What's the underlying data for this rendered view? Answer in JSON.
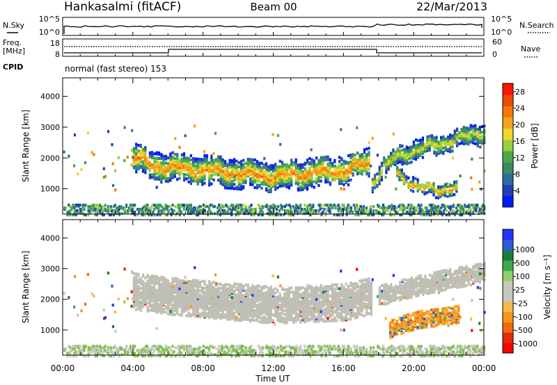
{
  "header": {
    "station": "Hankasalmi (fitACF)",
    "beam": "Beam 00",
    "date": "22/Mar/2013"
  },
  "top_panels": {
    "nsky": {
      "left_label": "N.Sky",
      "left_ticks": [
        "10^5",
        "10^0"
      ],
      "right_label": "N.Search",
      "right_ticks": [
        "10^5",
        "10^0"
      ]
    },
    "freq": {
      "left_label_1": "Freq.",
      "left_label_2": "[MHz]",
      "left_ticks": [
        "18",
        "8"
      ],
      "right_label": "Nave",
      "right_ticks": [
        "60",
        "0"
      ]
    },
    "cpid": {
      "label": "CPID",
      "program": "normal (fast stereo) 153"
    }
  },
  "colors": {
    "power_scale": [
      "#0018ff",
      "#1f3fb8",
      "#2e6c9a",
      "#3c8a5e",
      "#4aa84a",
      "#98d040",
      "#f2d42e",
      "#f5a21c",
      "#f47a0c",
      "#ee4a08",
      "#ff1400"
    ],
    "velocity_scale": [
      "#2233ff",
      "#2f5ad6",
      "#1e7a3c",
      "#3fa84a",
      "#8fcf6a",
      "#c7c7bf",
      "#c7c7bf",
      "#f6b84a",
      "#f5961a",
      "#f06a10",
      "#e02a08",
      "#ff0000"
    ],
    "ground_scatter": "#bebeb4"
  },
  "chart_data": [
    {
      "type": "heatmap",
      "panel": "power",
      "ylabel": "Slant Range [km]",
      "y_ticks": [
        1000,
        2000,
        3000,
        4000
      ],
      "ylim": [
        180,
        4600
      ],
      "x_ticks": [
        "00:00",
        "04:00",
        "08:00",
        "12:00",
        "16:00",
        "20:00",
        "00:00"
      ],
      "xlim_hours": [
        0,
        24
      ],
      "colorbar": {
        "label": "Power [dB]",
        "ticks": [
          4,
          8,
          12,
          16,
          20,
          24,
          28
        ],
        "range": [
          0,
          30
        ]
      },
      "scatter_bands": [
        {
          "t": [
            4.0,
            5.0,
            6.0,
            8.0,
            10.0,
            12.0,
            14.0,
            16.0,
            17.5
          ],
          "range_center": [
            2100,
            1800,
            1750,
            1650,
            1550,
            1450,
            1550,
            1650,
            1900
          ],
          "half_width": 320,
          "peak_power": 24
        },
        {
          "t": [
            17.6,
            18.2,
            19.0,
            20.0,
            21.0,
            22.0,
            23.0,
            24.0
          ],
          "range_center": [
            1300,
            1700,
            2100,
            2300,
            2450,
            2600,
            2750,
            2900
          ],
          "half_width": 220,
          "peak_power": 18
        },
        {
          "t": [
            19.0,
            19.8,
            20.5,
            21.5,
            22.5
          ],
          "range_center": [
            1500,
            1250,
            1050,
            1000,
            1150
          ],
          "half_width": 160,
          "peak_power": 22
        }
      ]
    },
    {
      "type": "heatmap",
      "panel": "velocity",
      "ylabel": "Slant Range [km]",
      "y_ticks": [
        1000,
        2000,
        3000,
        4000
      ],
      "ylim": [
        180,
        4600
      ],
      "x_ticks": [
        "00:00",
        "04:00",
        "08:00",
        "12:00",
        "16:00",
        "20:00",
        "00:00"
      ],
      "xlim_hours": [
        0,
        24
      ],
      "xlabel": "Time UT",
      "colorbar": {
        "label": "Velocity [m s⁻¹]",
        "ticks": [
          "1000",
          "500",
          "100",
          "25",
          "-25",
          "-100",
          "-500",
          "-1000"
        ]
      },
      "scatter_bands": [
        {
          "t": [
            4.0,
            6.0,
            8.0,
            12.0,
            16.0,
            17.6
          ],
          "range_center": [
            2300,
            2150,
            2050,
            1850,
            1950,
            2150
          ],
          "half_width": 450,
          "kind": "ground"
        },
        {
          "t": [
            18.0,
            20.0,
            22.0,
            24.0
          ],
          "range_center": [
            2150,
            2450,
            2700,
            2900
          ],
          "half_width": 250,
          "kind": "ground"
        },
        {
          "t": [
            18.6,
            19.5,
            20.5,
            21.5,
            22.5
          ],
          "range_center": [
            1050,
            1250,
            1400,
            1450,
            1550
          ],
          "half_width": 220,
          "kind": "negative"
        }
      ]
    }
  ]
}
